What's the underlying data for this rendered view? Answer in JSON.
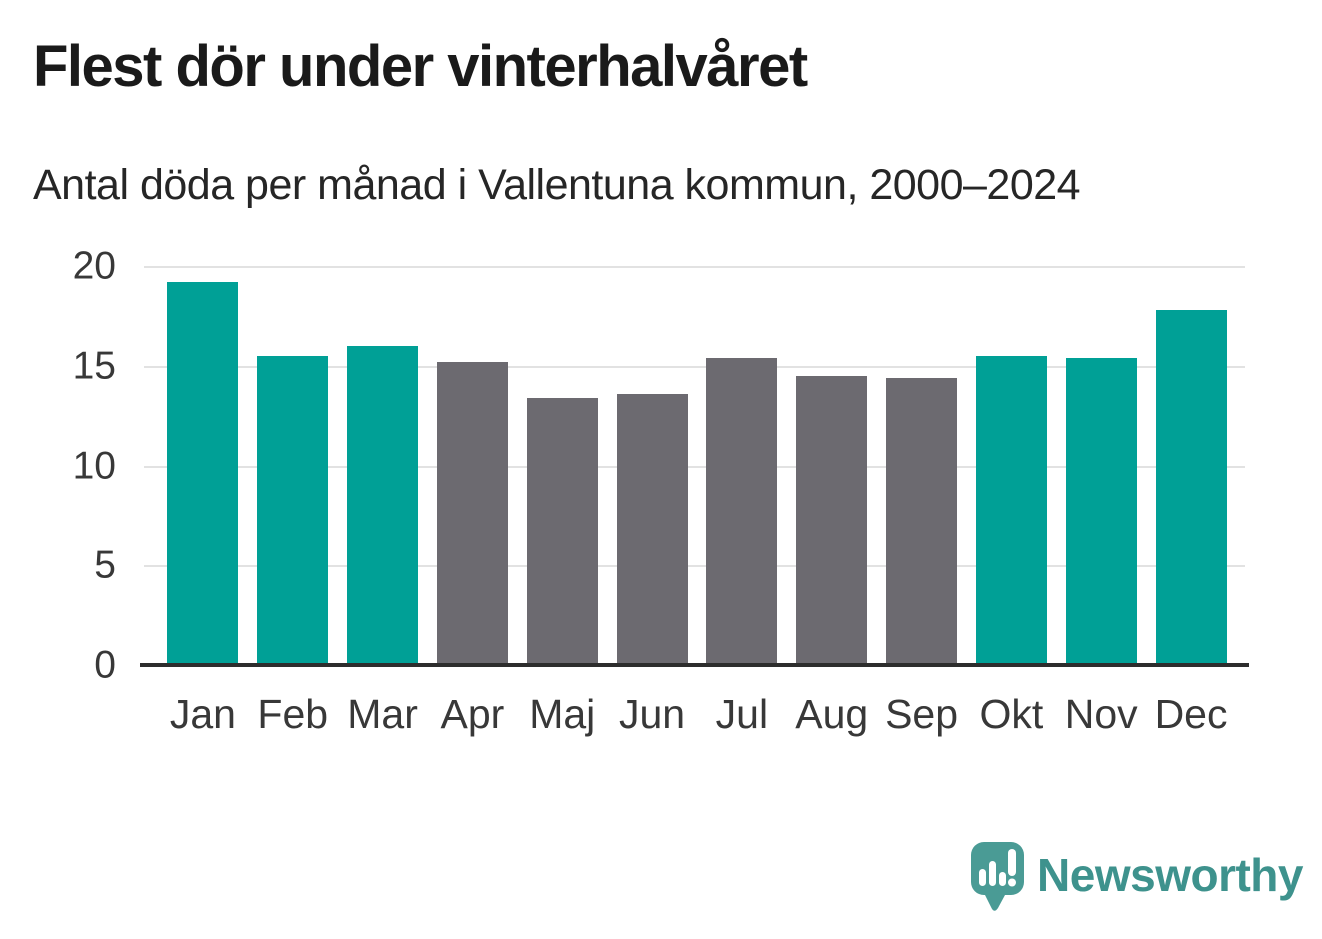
{
  "title": "Flest dör under vinterhalvåret",
  "subtitle": "Antal döda per månad i Vallentuna kommun, 2000–2024",
  "branding": {
    "name": "Newsworthy",
    "icon": "bar-chart-speech-bubble"
  },
  "colors": {
    "highlight_teal": "#00A096",
    "muted_gray": "#6C6A70",
    "gridline": "#E2E2E2",
    "axis": "#2D2D2D",
    "tick_label": "#383838",
    "title_text": "#1A1A1A",
    "logo_bubble": "#4A9B95",
    "logo_text": "#3E928D"
  },
  "chart_data": {
    "type": "bar",
    "title": "Flest dör under vinterhalvåret",
    "subtitle": "Antal döda per månad i Vallentuna kommun, 2000–2024",
    "categories": [
      "Jan",
      "Feb",
      "Mar",
      "Apr",
      "Maj",
      "Jun",
      "Jul",
      "Aug",
      "Sep",
      "Okt",
      "Nov",
      "Dec"
    ],
    "values": [
      19.2,
      15.5,
      16.0,
      15.2,
      13.4,
      13.6,
      15.4,
      14.5,
      14.4,
      15.5,
      15.4,
      17.8
    ],
    "highlighted": [
      true,
      true,
      true,
      false,
      false,
      false,
      false,
      false,
      false,
      true,
      true,
      true
    ],
    "highlight_meaning": "winter half-year months (teal), summer months (gray)",
    "xlabel": "",
    "ylabel": "",
    "ylim": [
      0,
      20
    ],
    "yticks": [
      0,
      5,
      10,
      15,
      20
    ],
    "grid": "horizontal",
    "legend": "none"
  }
}
